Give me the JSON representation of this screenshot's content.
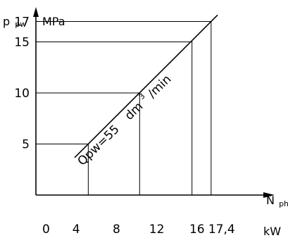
{
  "chart_data": {
    "type": "line",
    "title": "",
    "y_axis": {
      "symbol": "p",
      "symbol_sub": "pw",
      "unit": "MPa",
      "range": [
        0,
        17
      ],
      "ticks": [
        {
          "value": 5,
          "label": "5"
        },
        {
          "value": 10,
          "label": "10"
        },
        {
          "value": 15,
          "label": "15"
        },
        {
          "value": 17,
          "label": "17"
        }
      ]
    },
    "x_axis": {
      "symbol": "N",
      "symbol_sub": "ph",
      "unit": "kW",
      "range": [
        0,
        17.4
      ],
      "origin_label": "0",
      "ticks": [
        {
          "value": 4,
          "label": "4"
        },
        {
          "value": 8,
          "label": "8"
        },
        {
          "value": 12,
          "label": "12"
        },
        {
          "value": 16,
          "label": "16"
        },
        {
          "value": 17.4,
          "label": "17,4"
        }
      ]
    },
    "series": [
      {
        "points": [
          {
            "x": 5.2,
            "y": 5
          },
          {
            "x": 10.3,
            "y": 10
          },
          {
            "x": 15.5,
            "y": 15
          },
          {
            "x": 17.4,
            "y": 17
          }
        ]
      }
    ],
    "annotation": {
      "text_main": "Qpw=55",
      "unit_pre": "dm",
      "unit_sup": "3",
      "unit_post": "/min"
    },
    "grid": false,
    "legend": "none"
  }
}
